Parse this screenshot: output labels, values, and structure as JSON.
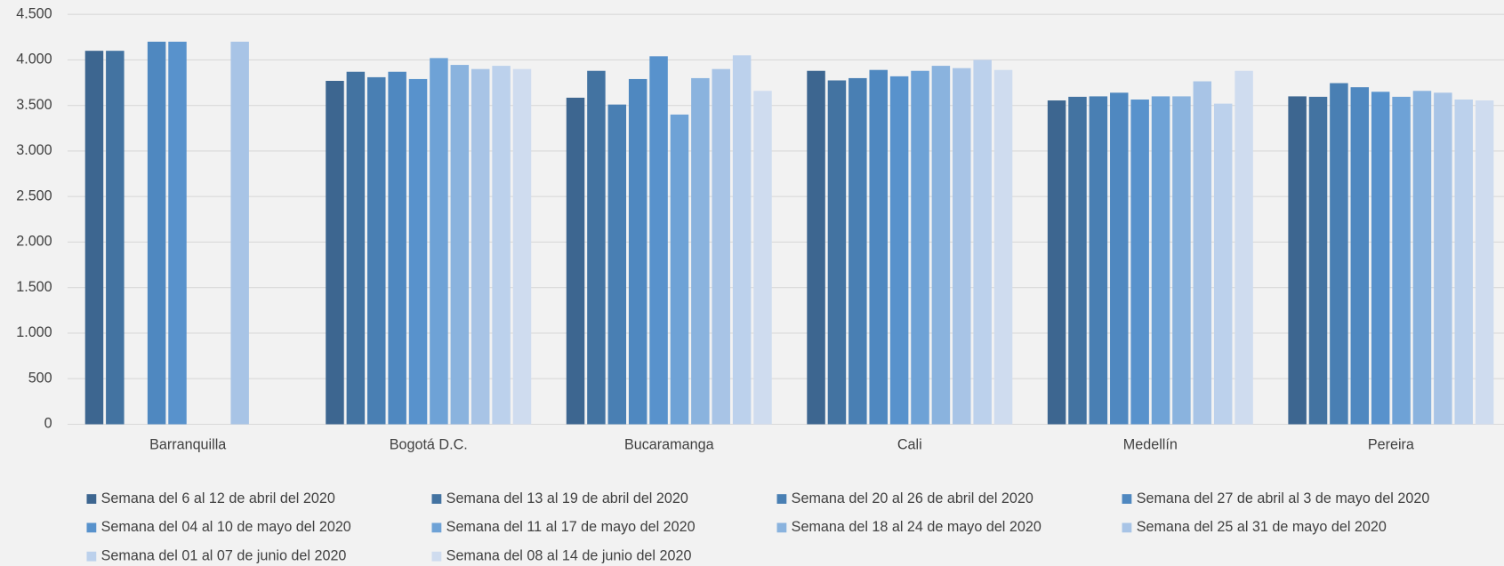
{
  "chart_data": {
    "type": "bar",
    "categories": [
      "Barranquilla",
      "Bogotá D.C.",
      "Bucaramanga",
      "Cali",
      "Medellín",
      "Pereira"
    ],
    "series": [
      {
        "name": "Semana del 6 al 12 de abril del 2020",
        "color": "#3d6690",
        "values": [
          4100,
          3770,
          3585,
          3880,
          3555,
          3600
        ]
      },
      {
        "name": "Semana del 13 al 19 de abril del 2020",
        "color": "#4373a1",
        "values": [
          4100,
          3870,
          3880,
          3775,
          3595,
          3595
        ]
      },
      {
        "name": "Semana del 20 al 26 de abril del 2020",
        "color": "#497fb3",
        "values": [
          null,
          3810,
          3510,
          3800,
          3600,
          3745
        ]
      },
      {
        "name": "Semana del 27 de abril al 3 de mayo del 2020",
        "color": "#4f88c0",
        "values": [
          4200,
          3870,
          3790,
          3890,
          3640,
          3700
        ]
      },
      {
        "name": "Semana del 04 al 10 de mayo del 2020",
        "color": "#5892cc",
        "values": [
          4200,
          3790,
          4040,
          3820,
          3565,
          3650
        ]
      },
      {
        "name": "Semana del 11 al 17 de mayo del 2020",
        "color": "#6ea2d6",
        "values": [
          null,
          4020,
          3400,
          3880,
          3600,
          3595
        ]
      },
      {
        "name": "Semana del 18 al 24 de mayo del 2020",
        "color": "#8ab3de",
        "values": [
          null,
          3945,
          3800,
          3935,
          3600,
          3660
        ]
      },
      {
        "name": "Semana del 25 al 31 de mayo del 2020",
        "color": "#a8c4e6",
        "values": [
          4200,
          3900,
          3900,
          3910,
          3765,
          3640
        ]
      },
      {
        "name": "Semana del 01 al 07 de junio del 2020",
        "color": "#bcd1ec",
        "values": [
          null,
          3935,
          4050,
          4000,
          3520,
          3565
        ]
      },
      {
        "name": "Semana del 08 al 14 de junio del 2020",
        "color": "#cfdcef",
        "values": [
          null,
          3900,
          3660,
          3890,
          3880,
          3555
        ]
      }
    ],
    "ylim": [
      0,
      4500
    ],
    "yticks": [
      0,
      500,
      {
        "value": 1000,
        "label": "1.000"
      },
      {
        "value": 1500,
        "label": "1.500"
      },
      {
        "value": 2000,
        "label": "2.000"
      },
      {
        "value": 2500,
        "label": "2.500"
      },
      {
        "value": 3000,
        "label": "3.000"
      },
      {
        "value": 3500,
        "label": "3.500"
      },
      {
        "value": 4000,
        "label": "4.000"
      },
      {
        "value": 4500,
        "label": "4.500"
      }
    ],
    "grid": true,
    "legend": "bottom"
  }
}
